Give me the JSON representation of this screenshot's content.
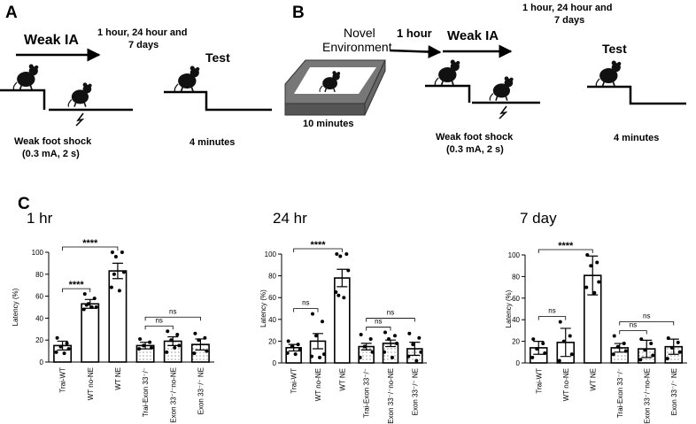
{
  "panel_a": {
    "label": "A",
    "action": "Weak IA",
    "interval": [
      "1 hour, 24 hour and",
      "7 days"
    ],
    "test": "Test",
    "shock": [
      "Weak foot shock",
      "(0.3 mA, 2 s)"
    ],
    "duration": "4 minutes"
  },
  "panel_b": {
    "label": "B",
    "environment": [
      "Novel",
      "Environment"
    ],
    "environment_duration": "10 minutes",
    "delay": "1 hour",
    "action": "Weak IA",
    "interval": [
      "1 hour, 24 hour and",
      "7 days"
    ],
    "test": "Test",
    "shock": [
      "Weak foot shock",
      "(0.3 mA, 2 s)"
    ],
    "duration": "4 minutes"
  },
  "panel_c_label": "C",
  "chart_data": [
    {
      "type": "bar",
      "title": "1 hr",
      "y_label": "Latency (%)",
      "color": "#ffffff",
      "categories": [
        "Trai-WT",
        "WT no-NE",
        "WT NE",
        "Trai-Exon 33⁻/⁻",
        "Exon 33⁻/⁻no-NE",
        "Exon 33⁻/⁻ NE"
      ],
      "values": [
        15,
        53,
        83,
        15,
        19,
        16
      ],
      "errors": [
        4,
        4,
        7,
        3,
        4,
        5
      ],
      "points": [
        [
          22,
          17,
          14,
          12,
          9,
          8
        ],
        [
          62,
          58,
          53,
          50,
          48,
          50,
          52
        ],
        [
          100,
          100,
          96,
          82,
          68,
          65,
          80
        ],
        [
          21,
          18,
          15,
          13,
          12
        ],
        [
          28,
          25,
          20,
          15,
          9,
          13
        ],
        [
          26,
          22,
          20,
          10,
          8
        ]
      ],
      "hatched": [
        false,
        false,
        false,
        true,
        true,
        true
      ],
      "ylim": [
        0,
        100
      ],
      "yticks": [
        0,
        20,
        40,
        60,
        80,
        100
      ],
      "annotations": [
        {
          "text": "****",
          "from": "Trai-WT",
          "to": "WT no-NE"
        },
        {
          "text": "****",
          "from": "Trai-WT",
          "to": "WT NE"
        },
        {
          "text": "ns",
          "from": "Trai-Exon 33⁻/⁻",
          "to": "Exon 33⁻/⁻no-NE"
        },
        {
          "text": "ns",
          "from": "Trai-Exon 33⁻/⁻",
          "to": "Exon 33⁻/⁻ NE"
        }
      ]
    },
    {
      "type": "bar",
      "title": "24 hr",
      "y_label": "Latency (%)",
      "color": "#ffffff",
      "categories": [
        "Trai-WT",
        "WT no-NE",
        "WT NE",
        "Trai-Exon 33⁻/⁻",
        "Exon 33⁻/⁻no-NE",
        "Exon 33⁻/⁻ NE"
      ],
      "values": [
        14,
        20,
        78,
        15,
        18,
        13
      ],
      "errors": [
        3,
        7,
        8,
        3,
        3,
        6
      ],
      "points": [
        [
          20,
          17,
          15,
          12,
          9,
          8
        ],
        [
          45,
          38,
          25,
          8,
          6,
          5
        ],
        [
          100,
          100,
          98,
          85,
          65,
          60,
          62
        ],
        [
          26,
          22,
          15,
          10,
          5
        ],
        [
          28,
          25,
          22,
          18,
          10,
          5
        ],
        [
          27,
          23,
          17,
          10,
          6,
          2
        ]
      ],
      "hatched": [
        false,
        false,
        false,
        true,
        true,
        true
      ],
      "ylim": [
        0,
        100
      ],
      "yticks": [
        0,
        20,
        40,
        60,
        80,
        100
      ],
      "annotations": [
        {
          "text": "ns",
          "from": "Trai-WT",
          "to": "WT no-NE"
        },
        {
          "text": "****",
          "from": "Trai-WT",
          "to": "WT NE"
        },
        {
          "text": "ns",
          "from": "Trai-Exon 33⁻/⁻",
          "to": "Exon 33⁻/⁻no-NE"
        },
        {
          "text": "ns",
          "from": "Trai-Exon 33⁻/⁻",
          "to": "Exon 33⁻/⁻ NE"
        }
      ]
    },
    {
      "type": "bar",
      "title": "7 day",
      "y_label": "Latency (%)",
      "color": "#ffffff",
      "categories": [
        "Trai-WT",
        "WT no-NE",
        "WT NE",
        "Trai-Exon 33⁻/⁻",
        "Exon 33⁻/⁻no-NE",
        "Exon 33⁻/⁻ NE"
      ],
      "values": [
        14,
        19,
        81,
        14,
        13,
        15
      ],
      "errors": [
        6,
        13,
        18,
        4,
        8,
        7
      ],
      "points": [
        [
          22,
          18,
          13,
          9,
          5
        ],
        [
          38,
          25,
          20,
          8,
          2
        ],
        [
          100,
          93,
          90,
          75,
          70,
          65
        ],
        [
          25,
          18,
          15,
          11,
          8
        ],
        [
          22,
          18,
          12,
          7,
          3
        ],
        [
          23,
          19,
          14,
          10,
          4
        ]
      ],
      "hatched": [
        false,
        false,
        false,
        true,
        true,
        true
      ],
      "ylim": [
        0,
        100
      ],
      "yticks": [
        0,
        20,
        40,
        60,
        80,
        100
      ],
      "annotations": [
        {
          "text": "ns",
          "from": "Trai-WT",
          "to": "WT no-NE"
        },
        {
          "text": "****",
          "from": "Trai-WT",
          "to": "WT NE"
        },
        {
          "text": "ns",
          "from": "Trai-Exon 33⁻/⁻",
          "to": "Exon 33⁻/⁻no-NE"
        },
        {
          "text": "ns",
          "from": "Trai-Exon 33⁻/⁻",
          "to": "Exon 33⁻/⁻ NE"
        }
      ]
    }
  ]
}
